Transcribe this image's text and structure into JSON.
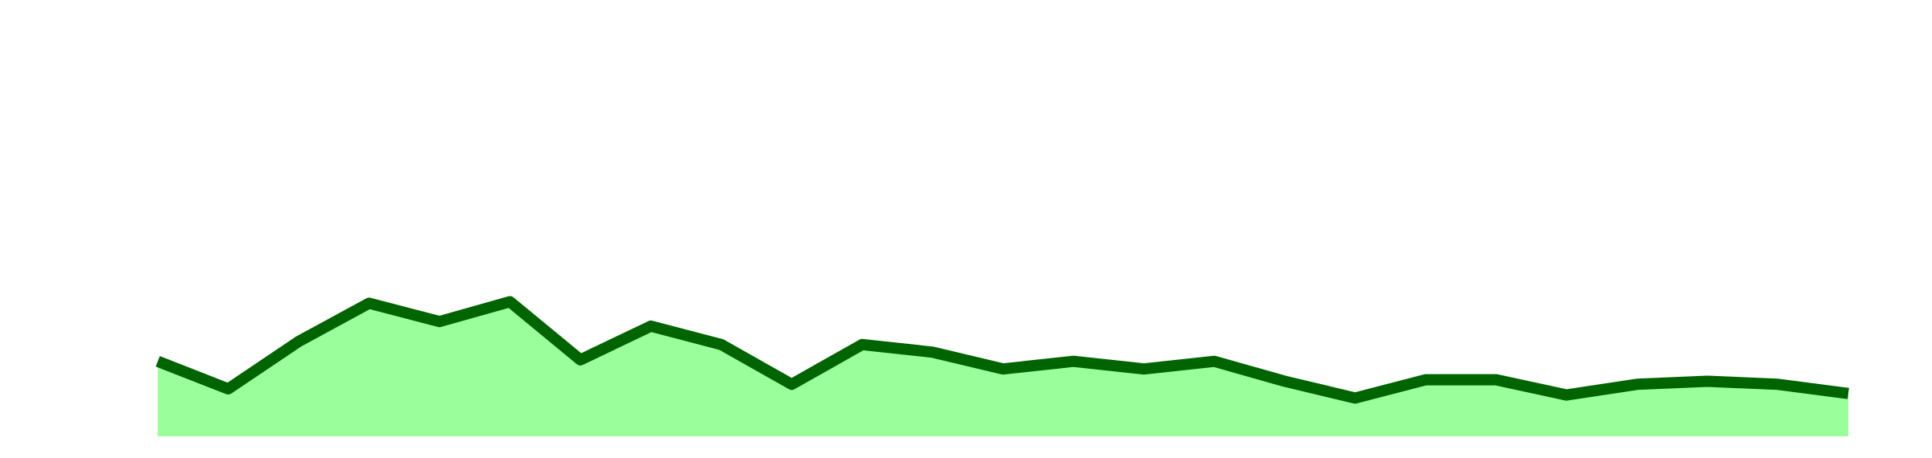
{
  "chart_data": {
    "type": "area",
    "x": [
      0,
      1,
      2,
      3,
      4,
      5,
      6,
      7,
      8,
      9,
      10,
      11,
      12,
      13,
      14,
      15,
      16,
      17,
      18,
      19,
      20,
      21,
      22,
      23,
      24
    ],
    "series": [
      {
        "values": [
          9.8,
          6.2,
          12.4,
          17.4,
          15.0,
          17.6,
          10.0,
          14.4,
          12.0,
          6.8,
          12.0,
          11.0,
          8.8,
          9.8,
          8.8,
          9.8,
          7.2,
          5.0,
          7.4,
          7.4,
          5.4,
          6.8,
          7.2,
          6.8,
          5.6
        ],
        "line_color": "#006400",
        "fill_color": "#9afe9a"
      }
    ],
    "ylim": [
      0,
      54
    ],
    "grid": false,
    "legend": "none"
  }
}
